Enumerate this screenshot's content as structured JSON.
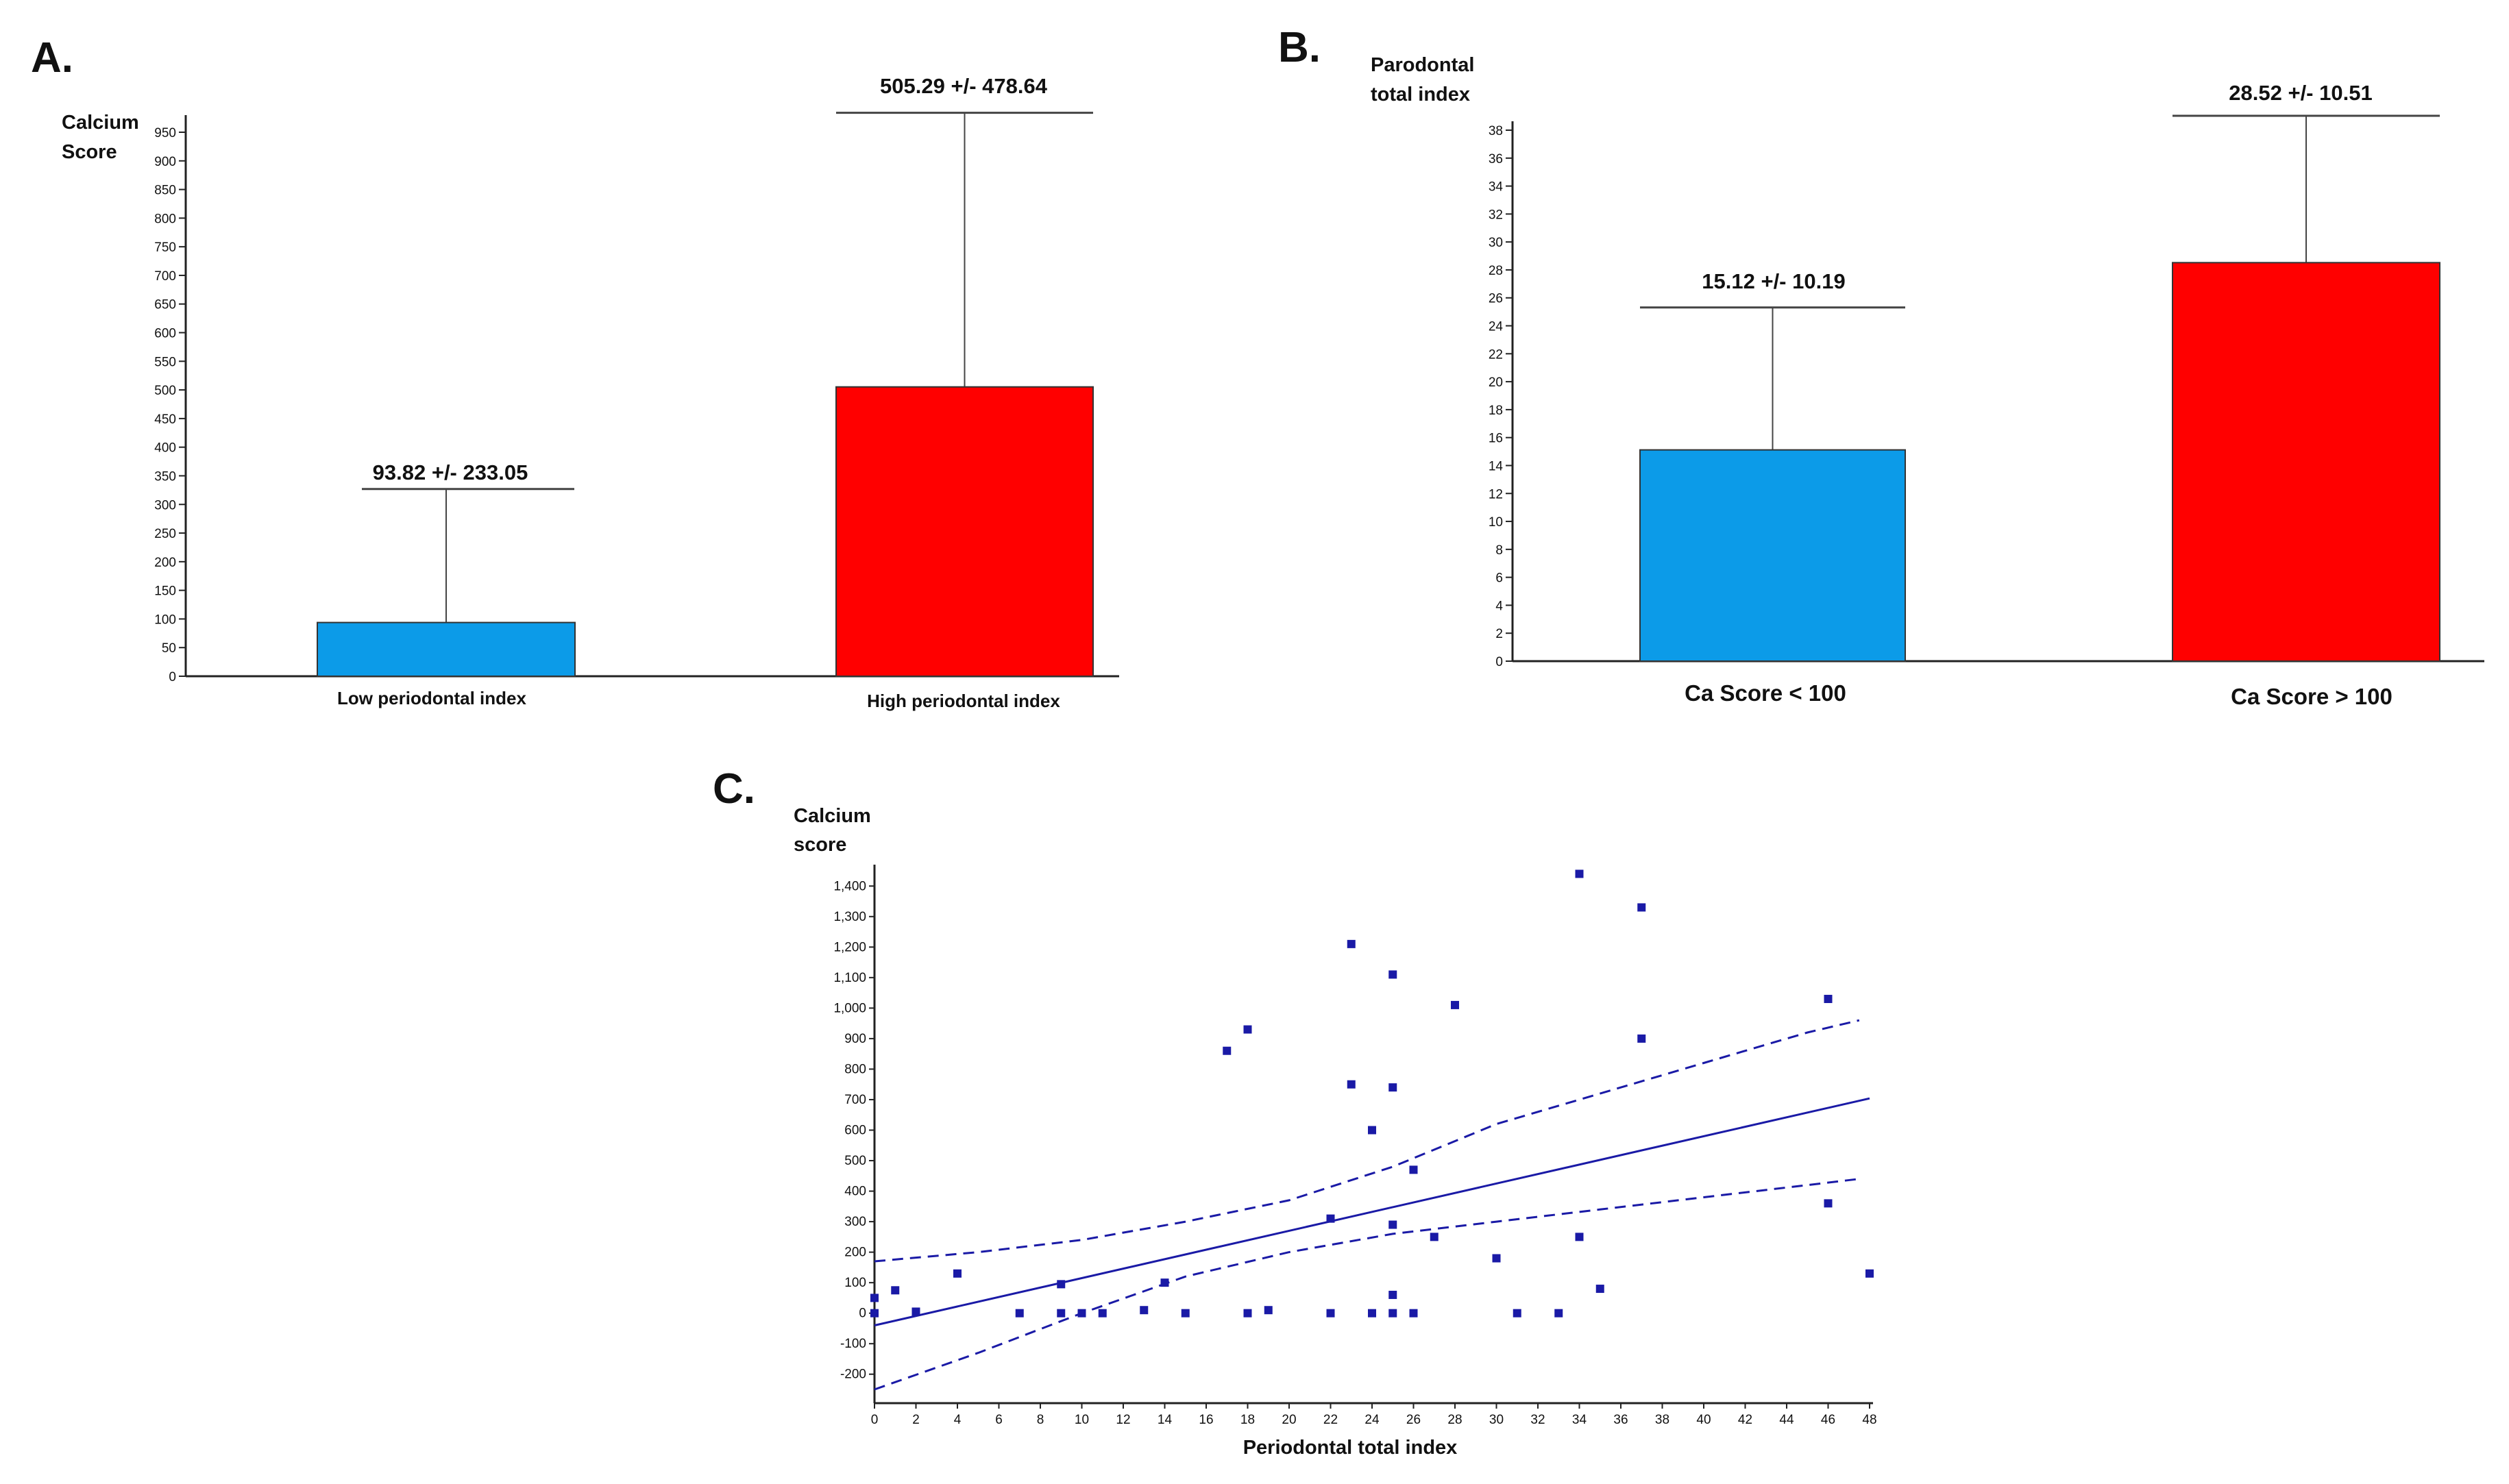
{
  "colors": {
    "blue": "#0c9be8",
    "red": "#ff0000",
    "scatter": "#1a1aa6",
    "axis": "#222222"
  },
  "chart_data": [
    {
      "panel": "A.",
      "type": "bar",
      "ylabel_lines": [
        "Calcium",
        "Score"
      ],
      "xlabel": "",
      "ylim": [
        0,
        950
      ],
      "yticks": [
        0,
        50,
        100,
        150,
        200,
        250,
        300,
        350,
        400,
        450,
        500,
        550,
        600,
        650,
        700,
        750,
        800,
        850,
        900,
        950
      ],
      "categories": [
        "Low periodontal index",
        "High periodontal index"
      ],
      "values": [
        93.82,
        505.29
      ],
      "errors": [
        233.05,
        478.64
      ],
      "labels": [
        "93.82 +/- 233.05",
        "505.29 +/- 478.64"
      ],
      "bar_colors": [
        "#0c9be8",
        "#ff0000"
      ]
    },
    {
      "panel": "B.",
      "type": "bar",
      "ylabel_lines": [
        "Parodontal",
        "total index"
      ],
      "xlabel": "",
      "ylim": [
        0,
        38
      ],
      "yticks": [
        0,
        2,
        4,
        6,
        8,
        10,
        12,
        14,
        16,
        18,
        20,
        22,
        24,
        26,
        28,
        30,
        32,
        34,
        36,
        38
      ],
      "categories": [
        "Ca Score < 100",
        "Ca Score > 100"
      ],
      "values": [
        15.12,
        28.52
      ],
      "errors": [
        10.19,
        10.51
      ],
      "labels": [
        "15.12 +/- 10.19",
        "28.52 +/- 10.51"
      ],
      "bar_colors": [
        "#0c9be8",
        "#ff0000"
      ]
    },
    {
      "panel": "C.",
      "type": "scatter",
      "ylabel_lines": [
        "Calcium",
        "score"
      ],
      "xlabel": "Periodontal total index",
      "xlim": [
        0,
        48
      ],
      "ylim": [
        -250,
        1450
      ],
      "xticks": [
        0,
        2,
        4,
        6,
        8,
        10,
        12,
        14,
        16,
        18,
        20,
        22,
        24,
        26,
        28,
        30,
        32,
        34,
        36,
        38,
        40,
        42,
        44,
        46,
        48
      ],
      "yticks": [
        -200,
        -100,
        0,
        100,
        200,
        300,
        400,
        500,
        600,
        700,
        800,
        900,
        1000,
        1100,
        1200,
        1300,
        1400
      ],
      "ytick_labels": [
        "-200",
        "-100",
        "0",
        "100",
        "200",
        "300",
        "400",
        "500",
        "600",
        "700",
        "800",
        "900",
        "1,000",
        "1,100",
        "1,200",
        "1,300",
        "1,400"
      ],
      "points": [
        [
          0,
          0
        ],
        [
          0,
          50
        ],
        [
          1,
          75
        ],
        [
          2,
          5
        ],
        [
          4,
          130
        ],
        [
          7,
          0
        ],
        [
          9,
          95
        ],
        [
          9,
          0
        ],
        [
          10,
          0
        ],
        [
          11,
          0
        ],
        [
          13,
          10
        ],
        [
          14,
          100
        ],
        [
          15,
          0
        ],
        [
          17,
          860
        ],
        [
          18,
          930
        ],
        [
          18,
          0
        ],
        [
          19,
          10
        ],
        [
          22,
          0
        ],
        [
          22,
          310
        ],
        [
          23,
          1210
        ],
        [
          23,
          750
        ],
        [
          24,
          600
        ],
        [
          24,
          0
        ],
        [
          25,
          1110
        ],
        [
          25,
          740
        ],
        [
          25,
          290
        ],
        [
          25,
          60
        ],
        [
          25,
          0
        ],
        [
          26,
          470
        ],
        [
          26,
          0
        ],
        [
          27,
          250
        ],
        [
          28,
          1010
        ],
        [
          30,
          180
        ],
        [
          31,
          0
        ],
        [
          33,
          0
        ],
        [
          34,
          1440
        ],
        [
          34,
          250
        ],
        [
          35,
          80
        ],
        [
          37,
          1330
        ],
        [
          37,
          900
        ],
        [
          46,
          1030
        ],
        [
          46,
          360
        ],
        [
          48,
          130
        ]
      ],
      "regression": {
        "intercept": -40,
        "slope": 15.5
      },
      "ci_upper": [
        [
          0,
          170
        ],
        [
          5,
          200
        ],
        [
          10,
          240
        ],
        [
          15,
          300
        ],
        [
          20,
          370
        ],
        [
          25,
          480
        ],
        [
          30,
          620
        ],
        [
          35,
          720
        ],
        [
          40,
          820
        ],
        [
          45,
          920
        ],
        [
          47.5,
          960
        ]
      ],
      "ci_lower": [
        [
          0,
          -250
        ],
        [
          5,
          -130
        ],
        [
          10,
          0
        ],
        [
          15,
          120
        ],
        [
          20,
          200
        ],
        [
          25,
          260
        ],
        [
          30,
          300
        ],
        [
          35,
          340
        ],
        [
          40,
          380
        ],
        [
          45,
          420
        ],
        [
          47.5,
          440
        ]
      ]
    }
  ]
}
